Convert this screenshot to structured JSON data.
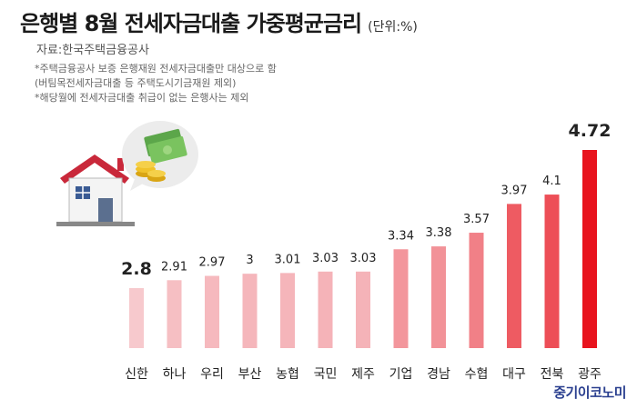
{
  "header": {
    "title": "은행별 8월 전세자금대출 가중평균금리",
    "unit": "(단위:%)",
    "source": "자료:한국주택금융공사"
  },
  "notes": [
    "*주택금융공사 보증 은행재원 전세자금대출만 대상으로 함",
    "(버팀목전세자금대출 등 주택도시기금재원 제외)",
    "*해당월에 전세자금대출 취급이 없는 은행사는 제외"
  ],
  "brand": "중기이코노미",
  "colors": {
    "min": "#f7c9cd",
    "max": "#e8141e"
  },
  "icons": [
    "house-icon",
    "money-bubble-icon"
  ],
  "chart_data": {
    "type": "bar",
    "categories": [
      "신한",
      "하나",
      "우리",
      "부산",
      "농협",
      "국민",
      "제주",
      "기업",
      "경남",
      "수협",
      "대구",
      "전북",
      "광주"
    ],
    "values": [
      2.8,
      2.91,
      2.97,
      3,
      3.01,
      3.03,
      3.03,
      3.34,
      3.38,
      3.57,
      3.97,
      4.1,
      4.72
    ],
    "value_labels": [
      "2.8",
      "2.91",
      "2.97",
      "3",
      "3.01",
      "3.03",
      "3.03",
      "3.34",
      "3.38",
      "3.57",
      "3.97",
      "4.1",
      "4.72"
    ],
    "title": "은행별 8월 전세자금대출 가중평균금리",
    "xlabel": "",
    "ylabel": "",
    "grid": false,
    "legend": false
  }
}
